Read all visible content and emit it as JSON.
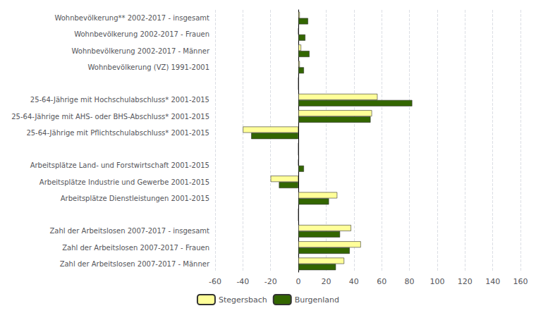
{
  "chart_data": {
    "type": "bar",
    "orientation": "horizontal",
    "categories": [
      "Wohnbevölkerung** 2002-2017 - insgesamt",
      "Wohnbevölkerung 2002-2017 - Frauen",
      "Wohnbevölkerung 2002-2017 - Männer",
      "Wohnbevölkerung (VZ) 1991-2001",
      null,
      "25-64-Jährige mit Hochschulabschluss* 2001-2015",
      "25-64-Jährige mit AHS- oder BHS-Abschluss* 2001-2015",
      "25-64-Jährige mit Pflichtschulabschluss* 2001-2015",
      null,
      "Arbeitsplätze Land- und Forstwirtschaft 2001-2015",
      "Arbeitsplätze Industrie und Gewerbe 2001-2015",
      "Arbeitsplätze Dienstleistungen 2001-2015",
      null,
      "Zahl der Arbeitslosen 2007-2017 - insgesamt",
      "Zahl der Arbeitslosen 2007-2017 - Frauen",
      "Zahl der Arbeitslosen 2007-2017 - Männer"
    ],
    "series": [
      {
        "name": "Stegersbach",
        "color": "#FFFF99",
        "values": [
          1,
          0,
          2,
          1,
          0,
          57,
          53,
          -40,
          0,
          0,
          -20,
          28,
          0,
          38,
          45,
          33
        ]
      },
      {
        "name": "Burgenland",
        "color": "#336600",
        "values": [
          7,
          5,
          8,
          4,
          0,
          82,
          52,
          -34,
          0,
          4,
          -14,
          22,
          0,
          30,
          37,
          27
        ]
      }
    ],
    "xlim": [
      -60,
      160
    ],
    "xticks": [
      -60,
      -40,
      -20,
      0,
      20,
      40,
      60,
      80,
      100,
      120,
      140,
      160
    ],
    "grid": true,
    "legend": "bottom"
  }
}
